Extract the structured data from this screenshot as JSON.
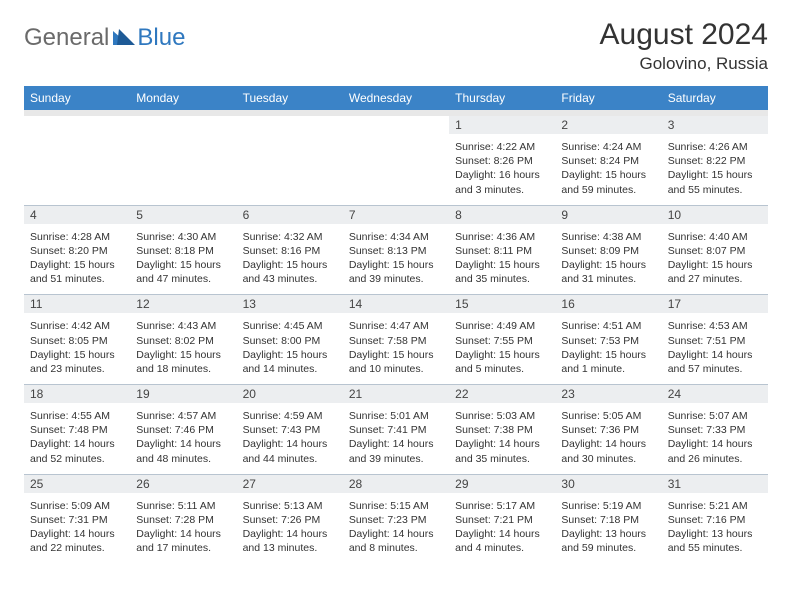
{
  "logo": {
    "text1": "General",
    "text2": "Blue"
  },
  "title": "August 2024",
  "location": "Golovino, Russia",
  "colors": {
    "header_bg": "#3b83c7",
    "header_text": "#ffffff",
    "daynum_bg": "#eceef0",
    "border": "#b8c4d0",
    "logo_gray": "#6a6a6a",
    "logo_blue": "#2f78bf"
  },
  "dayHeaders": [
    "Sunday",
    "Monday",
    "Tuesday",
    "Wednesday",
    "Thursday",
    "Friday",
    "Saturday"
  ],
  "weeks": [
    [
      {
        "n": "",
        "lines": []
      },
      {
        "n": "",
        "lines": []
      },
      {
        "n": "",
        "lines": []
      },
      {
        "n": "",
        "lines": []
      },
      {
        "n": "1",
        "lines": [
          "Sunrise: 4:22 AM",
          "Sunset: 8:26 PM",
          "Daylight: 16 hours",
          "and 3 minutes."
        ]
      },
      {
        "n": "2",
        "lines": [
          "Sunrise: 4:24 AM",
          "Sunset: 8:24 PM",
          "Daylight: 15 hours",
          "and 59 minutes."
        ]
      },
      {
        "n": "3",
        "lines": [
          "Sunrise: 4:26 AM",
          "Sunset: 8:22 PM",
          "Daylight: 15 hours",
          "and 55 minutes."
        ]
      }
    ],
    [
      {
        "n": "4",
        "lines": [
          "Sunrise: 4:28 AM",
          "Sunset: 8:20 PM",
          "Daylight: 15 hours",
          "and 51 minutes."
        ]
      },
      {
        "n": "5",
        "lines": [
          "Sunrise: 4:30 AM",
          "Sunset: 8:18 PM",
          "Daylight: 15 hours",
          "and 47 minutes."
        ]
      },
      {
        "n": "6",
        "lines": [
          "Sunrise: 4:32 AM",
          "Sunset: 8:16 PM",
          "Daylight: 15 hours",
          "and 43 minutes."
        ]
      },
      {
        "n": "7",
        "lines": [
          "Sunrise: 4:34 AM",
          "Sunset: 8:13 PM",
          "Daylight: 15 hours",
          "and 39 minutes."
        ]
      },
      {
        "n": "8",
        "lines": [
          "Sunrise: 4:36 AM",
          "Sunset: 8:11 PM",
          "Daylight: 15 hours",
          "and 35 minutes."
        ]
      },
      {
        "n": "9",
        "lines": [
          "Sunrise: 4:38 AM",
          "Sunset: 8:09 PM",
          "Daylight: 15 hours",
          "and 31 minutes."
        ]
      },
      {
        "n": "10",
        "lines": [
          "Sunrise: 4:40 AM",
          "Sunset: 8:07 PM",
          "Daylight: 15 hours",
          "and 27 minutes."
        ]
      }
    ],
    [
      {
        "n": "11",
        "lines": [
          "Sunrise: 4:42 AM",
          "Sunset: 8:05 PM",
          "Daylight: 15 hours",
          "and 23 minutes."
        ]
      },
      {
        "n": "12",
        "lines": [
          "Sunrise: 4:43 AM",
          "Sunset: 8:02 PM",
          "Daylight: 15 hours",
          "and 18 minutes."
        ]
      },
      {
        "n": "13",
        "lines": [
          "Sunrise: 4:45 AM",
          "Sunset: 8:00 PM",
          "Daylight: 15 hours",
          "and 14 minutes."
        ]
      },
      {
        "n": "14",
        "lines": [
          "Sunrise: 4:47 AM",
          "Sunset: 7:58 PM",
          "Daylight: 15 hours",
          "and 10 minutes."
        ]
      },
      {
        "n": "15",
        "lines": [
          "Sunrise: 4:49 AM",
          "Sunset: 7:55 PM",
          "Daylight: 15 hours",
          "and 5 minutes."
        ]
      },
      {
        "n": "16",
        "lines": [
          "Sunrise: 4:51 AM",
          "Sunset: 7:53 PM",
          "Daylight: 15 hours",
          "and 1 minute."
        ]
      },
      {
        "n": "17",
        "lines": [
          "Sunrise: 4:53 AM",
          "Sunset: 7:51 PM",
          "Daylight: 14 hours",
          "and 57 minutes."
        ]
      }
    ],
    [
      {
        "n": "18",
        "lines": [
          "Sunrise: 4:55 AM",
          "Sunset: 7:48 PM",
          "Daylight: 14 hours",
          "and 52 minutes."
        ]
      },
      {
        "n": "19",
        "lines": [
          "Sunrise: 4:57 AM",
          "Sunset: 7:46 PM",
          "Daylight: 14 hours",
          "and 48 minutes."
        ]
      },
      {
        "n": "20",
        "lines": [
          "Sunrise: 4:59 AM",
          "Sunset: 7:43 PM",
          "Daylight: 14 hours",
          "and 44 minutes."
        ]
      },
      {
        "n": "21",
        "lines": [
          "Sunrise: 5:01 AM",
          "Sunset: 7:41 PM",
          "Daylight: 14 hours",
          "and 39 minutes."
        ]
      },
      {
        "n": "22",
        "lines": [
          "Sunrise: 5:03 AM",
          "Sunset: 7:38 PM",
          "Daylight: 14 hours",
          "and 35 minutes."
        ]
      },
      {
        "n": "23",
        "lines": [
          "Sunrise: 5:05 AM",
          "Sunset: 7:36 PM",
          "Daylight: 14 hours",
          "and 30 minutes."
        ]
      },
      {
        "n": "24",
        "lines": [
          "Sunrise: 5:07 AM",
          "Sunset: 7:33 PM",
          "Daylight: 14 hours",
          "and 26 minutes."
        ]
      }
    ],
    [
      {
        "n": "25",
        "lines": [
          "Sunrise: 5:09 AM",
          "Sunset: 7:31 PM",
          "Daylight: 14 hours",
          "and 22 minutes."
        ]
      },
      {
        "n": "26",
        "lines": [
          "Sunrise: 5:11 AM",
          "Sunset: 7:28 PM",
          "Daylight: 14 hours",
          "and 17 minutes."
        ]
      },
      {
        "n": "27",
        "lines": [
          "Sunrise: 5:13 AM",
          "Sunset: 7:26 PM",
          "Daylight: 14 hours",
          "and 13 minutes."
        ]
      },
      {
        "n": "28",
        "lines": [
          "Sunrise: 5:15 AM",
          "Sunset: 7:23 PM",
          "Daylight: 14 hours",
          "and 8 minutes."
        ]
      },
      {
        "n": "29",
        "lines": [
          "Sunrise: 5:17 AM",
          "Sunset: 7:21 PM",
          "Daylight: 14 hours",
          "and 4 minutes."
        ]
      },
      {
        "n": "30",
        "lines": [
          "Sunrise: 5:19 AM",
          "Sunset: 7:18 PM",
          "Daylight: 13 hours",
          "and 59 minutes."
        ]
      },
      {
        "n": "31",
        "lines": [
          "Sunrise: 5:21 AM",
          "Sunset: 7:16 PM",
          "Daylight: 13 hours",
          "and 55 minutes."
        ]
      }
    ]
  ]
}
